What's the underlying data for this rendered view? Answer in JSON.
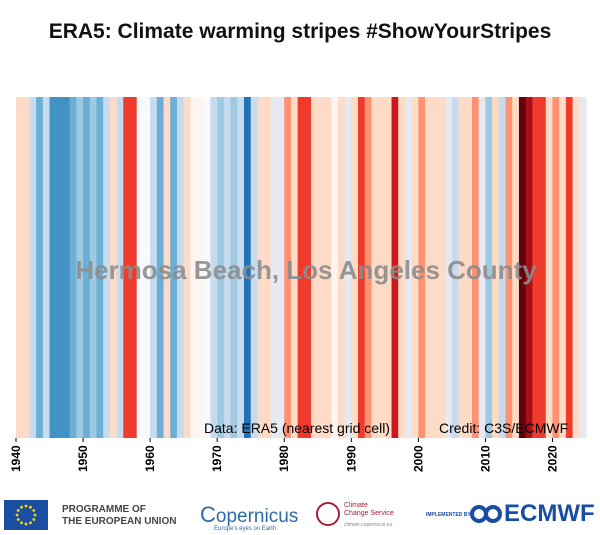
{
  "header": {
    "title": "ERA5: Climate warming stripes #ShowYourStripes"
  },
  "chart_data": {
    "type": "heatmap",
    "title": "ERA5: Climate warming stripes #ShowYourStripes",
    "location_label": "Hermosa Beach, Los Angeles County",
    "x_ticks": [
      1940,
      1950,
      1960,
      1970,
      1980,
      1990,
      2000,
      2010,
      2020
    ],
    "xlim": [
      1940,
      2024
    ],
    "source_text": "Data: ERA5 (nearest grid cell)",
    "credit_text": "Credit: C3S/ECMWF",
    "years": [
      1940,
      1941,
      1942,
      1943,
      1944,
      1945,
      1946,
      1947,
      1948,
      1949,
      1950,
      1951,
      1952,
      1953,
      1954,
      1955,
      1956,
      1957,
      1958,
      1959,
      1960,
      1961,
      1962,
      1963,
      1964,
      1965,
      1966,
      1967,
      1968,
      1969,
      1970,
      1971,
      1972,
      1973,
      1974,
      1975,
      1976,
      1977,
      1978,
      1979,
      1980,
      1981,
      1982,
      1983,
      1984,
      1985,
      1986,
      1987,
      1988,
      1989,
      1990,
      1991,
      1992,
      1993,
      1994,
      1995,
      1996,
      1997,
      1998,
      1999,
      2000,
      2001,
      2002,
      2003,
      2004,
      2005,
      2006,
      2007,
      2008,
      2009,
      2010,
      2011,
      2012,
      2013,
      2014,
      2015,
      2016,
      2017,
      2018,
      2019,
      2020,
      2021,
      2022,
      2023,
      2024
    ],
    "stripe_colors": [
      "#fddbc7",
      "#fddbc7",
      "#c6dbef",
      "#6baed6",
      "#c6dbef",
      "#4292c6",
      "#4292c6",
      "#4292c6",
      "#6baed6",
      "#9ecae1",
      "#6baed6",
      "#9ecae1",
      "#6baed6",
      "#c6dbef",
      "#fddbc7",
      "#c6dbef",
      "#ef3b2c",
      "#ef3b2c",
      "#f7fbff",
      "#f7fbff",
      "#c6dbef",
      "#6baed6",
      "#fddbc7",
      "#6baed6",
      "#c6dbef",
      "#fddbc7",
      "#fff5f0",
      "#fff5f0",
      "#f7fbff",
      "#c6dbef",
      "#9ecae1",
      "#c6dbef",
      "#9ecae1",
      "#c6dbef",
      "#2171b5",
      "#c6dbef",
      "#fddbc7",
      "#fddbc7",
      "#e7e9f0",
      "#e7e9f0",
      "#fc9272",
      "#fddbc7",
      "#ef3b2c",
      "#ef3b2c",
      "#fddbc7",
      "#fddbc7",
      "#fddbc7",
      "#fff5f0",
      "#fddbc7",
      "#e7e9f0",
      "#fddbc7",
      "#ef3b2c",
      "#fc9272",
      "#fddbc7",
      "#fddbc7",
      "#fddbc7",
      "#cb181d",
      "#fddbc7",
      "#e7e9f0",
      "#fddbc7",
      "#fc9272",
      "#fddbc7",
      "#fddbc7",
      "#fddbc7",
      "#e7e9f0",
      "#c6dbef",
      "#fddbc7",
      "#fddbc7",
      "#fc9272",
      "#e7e9f0",
      "#9ecae1",
      "#fddbc7",
      "#c6dbef",
      "#fc9272",
      "#fddbc7",
      "#67000d",
      "#a50f15",
      "#ef3b2c",
      "#ef3b2c",
      "#fddbc7",
      "#fc9272",
      "#fddbc7",
      "#ef3b2c",
      "#fddbc7",
      "#e7e9f0"
    ]
  },
  "footer": {
    "eu_label_line1": "PROGRAMME OF",
    "eu_label_line2": "THE EUROPEAN UNION",
    "copernicus": "opernicus",
    "copernicus_tagline": "Europe's eyes on Earth",
    "c3s_line1": "Climate",
    "c3s_line2": "Change Service",
    "c3s_url": "climate.copernicus.eu",
    "implemented_by": "IMPLEMENTED BY",
    "ecmwf": "ECMWF",
    "colors": {
      "eu_blue": "#1a4ea3",
      "c3s_red": "#a3223b",
      "ecmwf_blue": "#1a4ea3"
    }
  }
}
